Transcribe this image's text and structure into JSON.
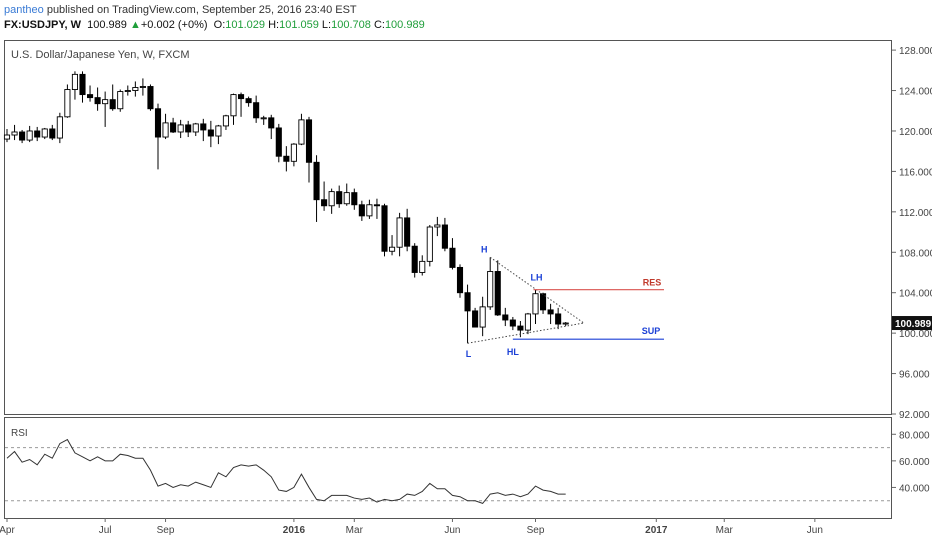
{
  "header": {
    "user": "pantheo",
    "published_text": " published on TradingView.com, September 25, 2016 23:40 EST",
    "symbol": "FX:USDJPY, W",
    "last": "100.989",
    "change_arrow": "▲",
    "change": "+0.002 (+0%)",
    "o_label": "O:",
    "o_value": "101.029",
    "h_label": "H:",
    "h_value": "101.059",
    "l_label": "L:",
    "l_value": "100.708",
    "c_label": "C:",
    "c_value": "100.989"
  },
  "colors": {
    "resistance": "#d9534f",
    "support": "#1a3fd6",
    "last_price_tag": "#111111",
    "label_blue": "#1a3fd6",
    "label_red": "#c0392b",
    "up_text": "#1f9e3a"
  },
  "chart_data": [
    {
      "type": "candlestick",
      "title": "U.S. Dollar/Japanese Yen, W, FXCM",
      "ylim": [
        92,
        129
      ],
      "yticks": [
        "128.000",
        "124.000",
        "120.000",
        "116.000",
        "112.000",
        "108.000",
        "104.000",
        "100.000",
        "96.000",
        "92.000"
      ],
      "x_labels": [
        "Apr",
        "Jul",
        "Sep",
        "2016",
        "Mar",
        "Jun",
        "Sep",
        "2017",
        "Mar",
        "Jun"
      ],
      "last_price_label": "100.989",
      "candles": [
        [
          119.2,
          120.2,
          118.9,
          119.6
        ],
        [
          119.6,
          120.6,
          119.1,
          119.9
        ],
        [
          119.9,
          120.1,
          118.8,
          119.1
        ],
        [
          119.1,
          120.5,
          118.9,
          120.0
        ],
        [
          120.0,
          120.4,
          119.0,
          119.4
        ],
        [
          119.4,
          120.3,
          119.2,
          120.2
        ],
        [
          120.2,
          120.6,
          119.1,
          119.3
        ],
        [
          119.3,
          121.8,
          118.8,
          121.4
        ],
        [
          121.4,
          124.6,
          121.3,
          124.1
        ],
        [
          124.1,
          125.9,
          123.1,
          125.6
        ],
        [
          125.6,
          125.9,
          122.8,
          123.6
        ],
        [
          123.6,
          124.5,
          122.9,
          123.3
        ],
        [
          123.3,
          124.3,
          122.0,
          122.7
        ],
        [
          122.7,
          123.9,
          120.4,
          123.1
        ],
        [
          123.1,
          124.6,
          122.0,
          122.2
        ],
        [
          122.2,
          124.1,
          121.9,
          123.9
        ],
        [
          123.9,
          124.5,
          123.5,
          124.0
        ],
        [
          124.0,
          124.9,
          123.4,
          124.3
        ],
        [
          124.3,
          125.2,
          123.5,
          124.4
        ],
        [
          124.4,
          124.6,
          122.0,
          122.2
        ],
        [
          122.2,
          122.7,
          116.2,
          119.4
        ],
        [
          119.4,
          121.7,
          119.2,
          120.8
        ],
        [
          120.8,
          121.3,
          119.8,
          119.9
        ],
        [
          119.9,
          121.1,
          119.3,
          120.6
        ],
        [
          120.6,
          121.0,
          119.4,
          119.9
        ],
        [
          119.9,
          120.8,
          119.5,
          120.7
        ],
        [
          120.7,
          121.2,
          119.0,
          120.1
        ],
        [
          120.1,
          121.0,
          118.4,
          119.5
        ],
        [
          119.5,
          120.6,
          118.7,
          120.5
        ],
        [
          120.5,
          121.6,
          120.1,
          121.5
        ],
        [
          121.5,
          123.7,
          120.6,
          123.6
        ],
        [
          123.6,
          123.8,
          121.4,
          123.2
        ],
        [
          123.2,
          123.4,
          122.4,
          122.8
        ],
        [
          122.8,
          123.5,
          120.8,
          121.3
        ],
        [
          121.3,
          121.5,
          120.6,
          121.3
        ],
        [
          121.3,
          121.6,
          119.2,
          120.3
        ],
        [
          120.3,
          120.7,
          116.9,
          117.5
        ],
        [
          117.5,
          118.5,
          116.0,
          117.0
        ],
        [
          117.0,
          118.8,
          116.5,
          118.7
        ],
        [
          118.7,
          121.7,
          118.6,
          121.1
        ],
        [
          121.1,
          121.4,
          114.9,
          116.9
        ],
        [
          116.9,
          117.6,
          111.0,
          113.2
        ],
        [
          113.2,
          115.0,
          112.1,
          112.6
        ],
        [
          112.6,
          114.3,
          111.8,
          114.0
        ],
        [
          114.0,
          114.6,
          112.4,
          112.8
        ],
        [
          112.8,
          114.8,
          112.6,
          113.9
        ],
        [
          113.9,
          114.3,
          112.2,
          112.7
        ],
        [
          112.7,
          113.1,
          111.1,
          111.6
        ],
        [
          111.6,
          113.2,
          111.3,
          112.7
        ],
        [
          112.7,
          113.3,
          111.3,
          112.6
        ],
        [
          112.6,
          112.8,
          107.6,
          108.1
        ],
        [
          108.1,
          109.7,
          107.7,
          108.5
        ],
        [
          108.5,
          111.9,
          107.6,
          111.4
        ],
        [
          111.4,
          112.3,
          108.1,
          108.6
        ],
        [
          108.6,
          108.9,
          105.5,
          106.0
        ],
        [
          106.0,
          107.7,
          105.7,
          107.1
        ],
        [
          107.1,
          110.7,
          106.6,
          110.5
        ],
        [
          110.5,
          111.5,
          109.6,
          110.7
        ],
        [
          110.7,
          111.4,
          108.1,
          108.4
        ],
        [
          108.4,
          109.4,
          106.3,
          106.5
        ],
        [
          106.5,
          106.8,
          103.5,
          104.0
        ],
        [
          104.0,
          104.8,
          99.0,
          102.2
        ],
        [
          102.2,
          102.5,
          100.6,
          100.6
        ],
        [
          100.6,
          103.6,
          99.7,
          102.6
        ],
        [
          102.6,
          107.5,
          102.3,
          106.1
        ],
        [
          106.1,
          107.2,
          101.7,
          101.8
        ],
        [
          101.8,
          102.5,
          100.7,
          101.3
        ],
        [
          101.3,
          101.6,
          100.3,
          100.7
        ],
        [
          100.7,
          101.2,
          99.6,
          100.3
        ],
        [
          100.3,
          102.0,
          99.9,
          101.9
        ],
        [
          101.9,
          104.3,
          100.9,
          103.9
        ],
        [
          103.9,
          104.0,
          101.9,
          102.3
        ],
        [
          102.3,
          102.9,
          100.9,
          101.9
        ],
        [
          101.9,
          102.5,
          100.4,
          100.9
        ],
        [
          100.9,
          101.1,
          100.7,
          101.0
        ]
      ],
      "annotations": [
        {
          "label": "H",
          "color": "blue"
        },
        {
          "label": "LH",
          "color": "blue"
        },
        {
          "label": "L",
          "color": "blue"
        },
        {
          "label": "HL",
          "color": "blue"
        },
        {
          "label": "RES",
          "color": "red",
          "level": 104.3
        },
        {
          "label": "SUP",
          "color": "blue",
          "level": 99.4
        }
      ]
    },
    {
      "type": "line",
      "title": "RSI",
      "ylim": [
        17,
        93
      ],
      "yticks": [
        "80.000",
        "60.000",
        "40.000"
      ],
      "guide_levels": [
        70,
        30
      ],
      "x_labels": [
        "Apr",
        "Jul",
        "Sep",
        "2016",
        "Mar",
        "Jun",
        "Sep",
        "2017",
        "Mar",
        "Jun"
      ],
      "values": [
        62,
        67,
        59,
        61,
        57,
        65,
        62,
        73,
        76,
        66,
        63,
        60,
        63,
        60,
        60,
        65,
        64,
        62,
        62,
        53,
        41,
        43,
        40,
        42,
        41,
        44,
        42,
        40,
        51,
        48,
        55,
        57,
        56,
        57,
        53,
        48,
        38,
        37,
        40,
        50,
        40,
        31,
        30,
        34,
        34,
        34,
        32,
        31,
        32,
        29,
        31,
        30,
        31,
        35,
        34,
        37,
        43,
        39,
        39,
        34,
        33,
        30,
        30,
        28,
        35,
        36,
        34,
        35,
        33,
        35,
        41,
        38,
        37,
        35,
        35
      ]
    }
  ]
}
